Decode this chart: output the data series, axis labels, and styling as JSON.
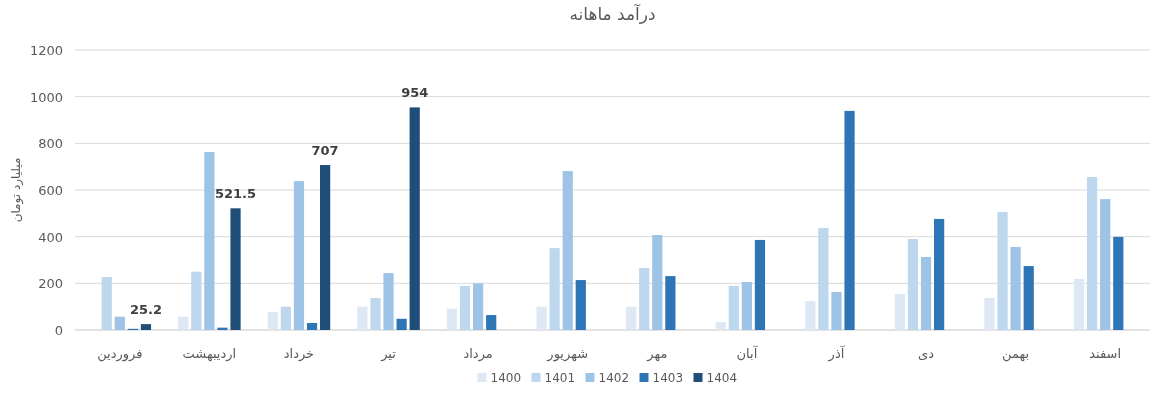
{
  "chart_data": {
    "type": "bar",
    "title": "درآمد ماهانه",
    "ylabel": "میلیارد تومان",
    "categories": [
      "فروردین",
      "اردیبهشت",
      "خرداد",
      "تیر",
      "مرداد",
      "شهریور",
      "مهر",
      "آبان",
      "آذر",
      "دی",
      "بهمن",
      "اسفند"
    ],
    "series": [
      {
        "name": "1400",
        "color": "#dde8f4",
        "values": [
          null,
          57,
          77,
          100,
          91,
          100,
          100,
          34,
          124,
          154,
          137,
          219
        ]
      },
      {
        "name": "1401",
        "color": "#bdd7ee",
        "values": [
          227,
          250,
          100,
          137,
          189,
          351,
          266,
          189,
          437,
          390,
          506,
          656
        ]
      },
      {
        "name": "1402",
        "color": "#9dc3e6",
        "values": [
          57,
          763,
          638,
          244,
          200,
          681,
          407,
          206,
          163,
          313,
          356,
          561
        ]
      },
      {
        "name": "1403",
        "color": "#2e75b6",
        "values": [
          5,
          10,
          30,
          48,
          64,
          214,
          231,
          386,
          939,
          476,
          274,
          399
        ]
      },
      {
        "name": "1404",
        "color": "#1f4e79",
        "values": [
          25.2,
          521.5,
          707,
          954,
          null,
          null,
          null,
          null,
          null,
          null,
          null,
          null
        ],
        "value_labels": [
          "25.2",
          "521.5",
          "707",
          "954",
          null,
          null,
          null,
          null,
          null,
          null,
          null,
          null
        ]
      }
    ],
    "ylim": [
      0,
      1200
    ],
    "yticks": [
      0,
      200,
      400,
      600,
      800,
      1000,
      1200
    ],
    "grid": "y",
    "legend": "bottom"
  }
}
